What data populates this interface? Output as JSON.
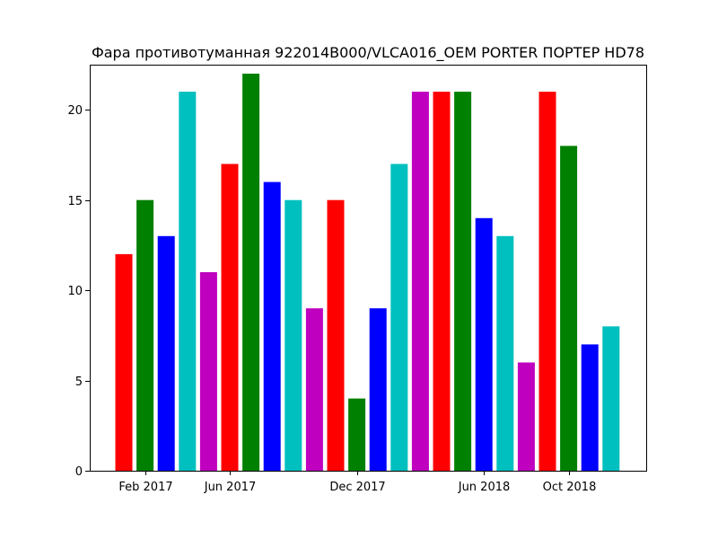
{
  "chart_data": {
    "type": "bar",
    "title": "Фара противотуманная 922014B000/VLCA016_OEM PORTER ПОРТЕР HD78",
    "xlabel": "",
    "ylabel": "",
    "x": [
      "2017-01",
      "2017-02",
      "2017-03",
      "2017-04",
      "2017-05",
      "2017-06",
      "2017-07",
      "2017-08",
      "2017-09",
      "2017-10",
      "2017-11",
      "2017-12",
      "2018-01",
      "2018-02",
      "2018-03",
      "2018-04",
      "2018-05",
      "2018-06",
      "2018-07",
      "2018-08",
      "2018-09",
      "2018-10",
      "2018-11",
      "2018-12"
    ],
    "values": [
      12,
      15,
      13,
      21,
      11,
      17,
      22,
      16,
      15,
      9,
      15,
      4,
      9,
      17,
      21,
      21,
      21,
      14,
      13,
      6,
      21,
      18,
      7,
      8
    ],
    "colors": [
      "#ff0000",
      "#008000",
      "#0000ff",
      "#00bfbf",
      "#bf00bf"
    ],
    "ylim": [
      0,
      22.5
    ],
    "yticks": [
      0,
      5,
      10,
      15,
      20
    ],
    "xticks": [
      {
        "at": "2017-02",
        "label": "Feb 2017"
      },
      {
        "at": "2017-06",
        "label": "Jun 2017"
      },
      {
        "at": "2017-12",
        "label": "Dec 2017"
      },
      {
        "at": "2018-06",
        "label": "Jun 2018"
      },
      {
        "at": "2018-10",
        "label": "Oct 2018"
      }
    ],
    "grid": false,
    "legend": "none"
  }
}
